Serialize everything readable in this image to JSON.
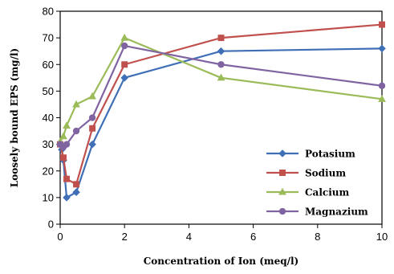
{
  "chart_data": {
    "type": "line",
    "title": "",
    "xlabel": "Concentration of  Ion (meq/l)",
    "ylabel": "Loosely bound EPS (mg/l)",
    "xlim": [
      0,
      10
    ],
    "ylim": [
      0,
      80
    ],
    "xticks": [
      0,
      2,
      4,
      6,
      8,
      10
    ],
    "yticks": [
      0,
      10,
      20,
      30,
      40,
      50,
      60,
      70,
      80
    ],
    "grid": false,
    "legend_position": "bottom-right",
    "series": [
      {
        "name": "Potasium",
        "color": "#3F6FB6",
        "marker": "diamond",
        "x": [
          0,
          0.05,
          0.1,
          0.2,
          0.5,
          1,
          2,
          5,
          10
        ],
        "y": [
          30,
          28,
          24,
          10,
          12,
          30,
          55,
          65,
          66
        ]
      },
      {
        "name": "Sodium",
        "color": "#C0504D",
        "marker": "square",
        "x": [
          0,
          0.1,
          0.2,
          0.5,
          1,
          2,
          5,
          10
        ],
        "y": [
          30,
          25,
          17,
          15,
          36,
          60,
          70,
          75
        ]
      },
      {
        "name": "Calcium",
        "color": "#9BBB59",
        "marker": "triangle",
        "x": [
          0,
          0.1,
          0.2,
          0.5,
          1,
          2,
          5,
          10
        ],
        "y": [
          31,
          33,
          37,
          45,
          48,
          70,
          55,
          47
        ]
      },
      {
        "name": "Magnazium",
        "color": "#8064A2",
        "marker": "circle",
        "x": [
          0,
          0.1,
          0.2,
          0.5,
          1,
          2,
          5,
          10
        ],
        "y": [
          30,
          29,
          30,
          35,
          40,
          67,
          60,
          52
        ]
      }
    ]
  }
}
